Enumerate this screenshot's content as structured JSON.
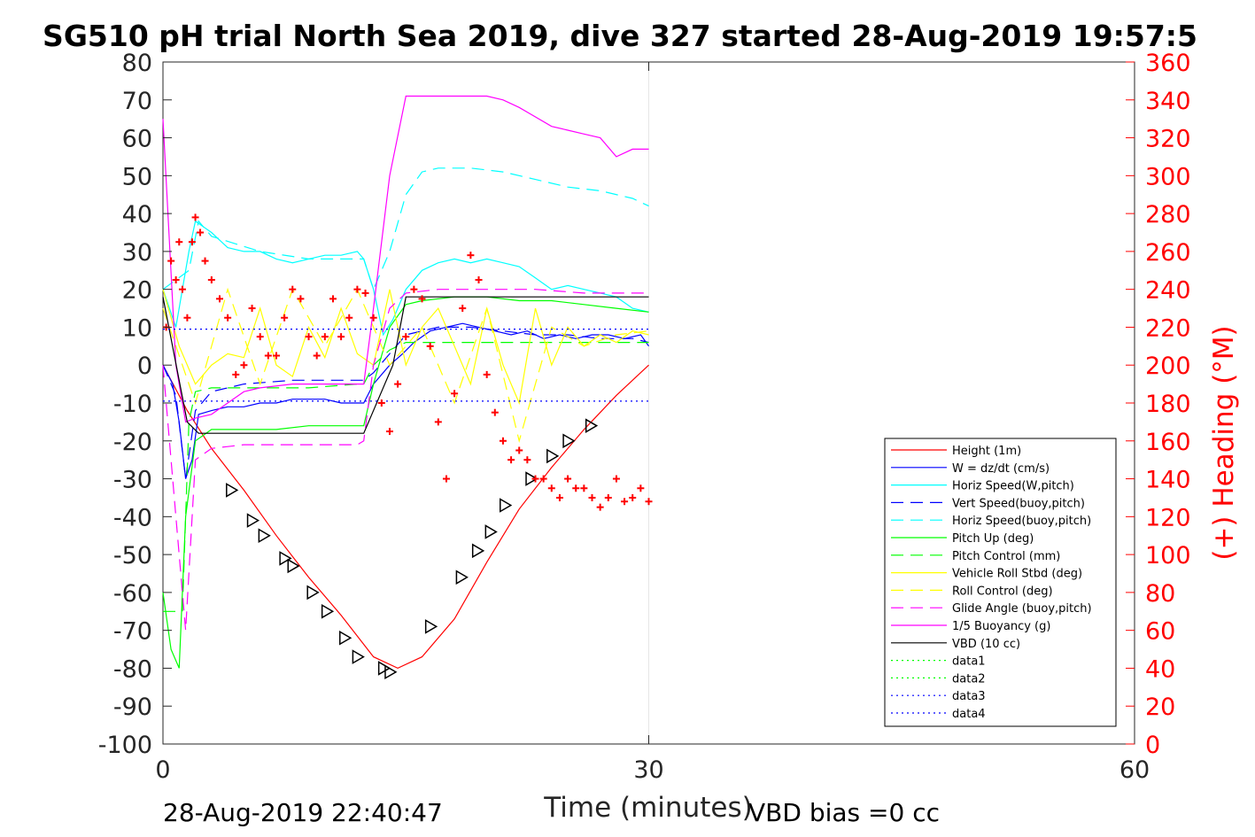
{
  "chart_data": {
    "type": "line",
    "title": "SG510 pH trial North Sea 2019, dive 327 started 28-Aug-2019 19:57:5",
    "xlabel": "Time (minutes)",
    "ylabel": "",
    "ylabel_right": "(+) Heading (°M)",
    "xlim": [
      0,
      60
    ],
    "ylim": [
      -100,
      80
    ],
    "ylim_right": [
      0,
      360
    ],
    "x_ticks": [
      "0",
      "30",
      "60"
    ],
    "y_ticks": [
      "80",
      "70",
      "60",
      "50",
      "40",
      "30",
      "20",
      "10",
      "0",
      "-10",
      "-20",
      "-30",
      "-40",
      "-50",
      "-60",
      "-70",
      "-80",
      "-90",
      "-100"
    ],
    "y_ticks_right": [
      "360",
      "340",
      "320",
      "300",
      "280",
      "260",
      "240",
      "220",
      "200",
      "180",
      "160",
      "140",
      "120",
      "100",
      "80",
      "60",
      "40",
      "20",
      "0"
    ],
    "grid": "x-only",
    "legend_position": "right",
    "footer_left": "28-Aug-2019 22:40:47",
    "footer_right": "VBD bias =0 cc",
    "colors": {
      "height": "#ff0000",
      "w": "#0000ff",
      "horiz_w": "#00ffff",
      "vert_buoy": "#0000ff",
      "horiz_buoy": "#00ffff",
      "pitch": "#00ff00",
      "pitch_ctrl": "#00ff00",
      "roll": "#ffff00",
      "roll_ctrl": "#ffff00",
      "glide": "#ff00ff",
      "buoyancy": "#ff00ff",
      "vbd": "#000000",
      "heading": "#ff0000"
    },
    "series": [
      {
        "key": "height",
        "name": "Height (1m)",
        "style": "solid",
        "x": [
          0,
          1.5,
          3,
          5,
          7,
          9,
          11,
          13,
          14.5,
          16,
          18,
          20,
          22,
          24,
          26,
          28,
          30
        ],
        "y": [
          0,
          -12,
          -22,
          -33,
          -45,
          -56,
          -66,
          -77,
          -80,
          -77,
          -67,
          -52,
          -38,
          -27,
          -17,
          -8,
          0
        ]
      },
      {
        "key": "height_markers",
        "name": "",
        "style": "triangle",
        "x": [
          4.2,
          5.5,
          6.2,
          7.5,
          8,
          9.2,
          10.1,
          11.2,
          12,
          13.6,
          14,
          16.5,
          18.4,
          19.4,
          20.2,
          21.1,
          22.7,
          24,
          25,
          26.4
        ],
        "y": [
          -33,
          -41,
          -45,
          -51,
          -53,
          -60,
          -65,
          -72,
          -77,
          -80,
          -81,
          -69,
          -56,
          -49,
          -44,
          -37,
          -30,
          -24,
          -20,
          -16
        ]
      },
      {
        "key": "w",
        "name": "W = dz/dt (cm/s)",
        "style": "solid",
        "x": [
          0,
          0.6,
          1,
          1.4,
          1.8,
          2.2,
          3,
          4,
          5,
          6,
          7,
          8,
          9,
          10,
          11,
          12,
          12.4,
          13,
          14,
          14.8,
          15.5,
          16.5,
          17.5,
          18.5,
          19.5,
          20.5,
          21.5,
          22.5,
          23.5,
          24.5,
          25.5,
          26.5,
          27.5,
          28.5,
          29.5,
          30
        ],
        "y": [
          0,
          -5,
          -15,
          -30,
          -25,
          -13,
          -12,
          -11,
          -11,
          -10,
          -10,
          -9,
          -9,
          -9,
          -10,
          -10,
          -10,
          -5,
          0,
          3,
          6,
          9,
          10,
          11,
          10,
          9,
          8,
          9,
          7,
          8,
          7,
          8,
          8,
          7,
          8,
          5
        ]
      },
      {
        "key": "horiz_w",
        "name": "Horiz Speed(W,pitch)",
        "style": "solid",
        "x": [
          0,
          0.8,
          1.6,
          2,
          3,
          4,
          5,
          6,
          7,
          8,
          9,
          10,
          11,
          12,
          12.4,
          13,
          13.6,
          14.2,
          15,
          16,
          17,
          18,
          19,
          20,
          21,
          22,
          23,
          24,
          25,
          26,
          27,
          28,
          29,
          30
        ],
        "y": [
          20,
          10,
          30,
          38,
          35,
          31,
          30,
          30,
          28,
          27,
          28,
          29,
          29,
          30,
          28,
          20,
          8,
          12,
          20,
          25,
          27,
          28,
          27,
          28,
          27,
          26,
          23,
          20,
          21,
          20,
          19,
          18,
          15,
          14
        ]
      },
      {
        "key": "vert_buoy",
        "name": "Vert Speed(buoy,pitch)",
        "style": "dashed",
        "x": [
          0,
          0.8,
          1.4,
          2,
          3,
          5,
          8,
          11,
          12.4,
          13,
          14,
          15,
          17,
          19,
          21,
          23,
          25,
          27,
          29,
          30
        ],
        "y": [
          0,
          -8,
          -30,
          -12,
          -7,
          -5,
          -4,
          -4,
          -4,
          -2,
          3,
          8,
          10,
          10,
          9,
          8,
          8,
          7,
          7,
          6
        ]
      },
      {
        "key": "horiz_buoy",
        "name": "Horiz Speed(buoy,pitch)",
        "style": "dashed",
        "x": [
          0,
          1.6,
          2.2,
          3,
          6,
          9,
          12,
          12.4,
          13,
          14,
          15,
          16,
          17,
          19,
          21,
          23,
          25,
          27,
          29,
          30
        ],
        "y": [
          20,
          25,
          38,
          34,
          30,
          28,
          28,
          28,
          20,
          30,
          45,
          51,
          52,
          52,
          51,
          49,
          47,
          46,
          44,
          42
        ]
      },
      {
        "key": "pitch",
        "name": "Pitch Up (deg)",
        "style": "solid",
        "x": [
          0,
          0.5,
          1,
          1.4,
          2,
          3,
          5,
          7,
          9,
          11,
          12,
          12.4,
          13,
          14,
          15,
          16,
          18,
          20,
          22,
          24,
          26,
          28,
          30
        ],
        "y": [
          -60,
          -75,
          -80,
          -40,
          -20,
          -17,
          -17,
          -17,
          -16,
          -16,
          -16,
          -16,
          -5,
          10,
          16,
          17,
          18,
          18,
          17,
          17,
          16,
          15,
          14
        ]
      },
      {
        "key": "pitch_ctrl",
        "name": "Pitch Control (mm)",
        "style": "dashed",
        "x": [
          0,
          1.2,
          1.6,
          2,
          3,
          6,
          9,
          12,
          12.4,
          13,
          14,
          15,
          18,
          21,
          24,
          27,
          30
        ],
        "y": [
          -65,
          -65,
          -15,
          -7,
          -6,
          -6,
          -6,
          -5,
          -5,
          0,
          4,
          6,
          6,
          6,
          6,
          6,
          6
        ]
      },
      {
        "key": "roll",
        "name": "Vehicle Roll Stbd (deg)",
        "style": "solid",
        "x": [
          0,
          1,
          2,
          3,
          4,
          5,
          6,
          7,
          8,
          9,
          10,
          11,
          12,
          13,
          14,
          15,
          16,
          17,
          18,
          19,
          20,
          21,
          22,
          23,
          24,
          25,
          26,
          27,
          28,
          29,
          30
        ],
        "y": [
          20,
          5,
          -5,
          0,
          3,
          2,
          15,
          0,
          -3,
          10,
          2,
          15,
          3,
          0,
          20,
          0,
          10,
          15,
          5,
          -5,
          15,
          0,
          -10,
          15,
          0,
          10,
          5,
          8,
          6,
          9,
          8
        ]
      },
      {
        "key": "roll_ctrl",
        "name": "Roll Control (deg)",
        "style": "dashed",
        "x": [
          0,
          2,
          4,
          6,
          8,
          10,
          12,
          14,
          16,
          18,
          20,
          22,
          24,
          26,
          28,
          30
        ],
        "y": [
          15,
          -10,
          20,
          -5,
          20,
          5,
          20,
          0,
          10,
          -10,
          15,
          -20,
          10,
          5,
          8,
          9
        ]
      },
      {
        "key": "glide",
        "name": "Glide Angle (buoy,pitch)",
        "style": "dashed",
        "x": [
          0,
          0.8,
          1.4,
          2,
          3,
          5,
          8,
          11,
          12,
          12.4,
          13,
          14,
          15,
          17,
          20,
          23,
          26,
          30
        ],
        "y": [
          0,
          -40,
          -70,
          -25,
          -22,
          -21,
          -21,
          -21,
          -21,
          -20,
          0,
          15,
          19,
          20,
          20,
          20,
          19,
          19
        ]
      },
      {
        "key": "buoyancy",
        "name": "1/5 Buoyancy (g)",
        "style": "solid",
        "x": [
          0,
          0.8,
          1.4,
          2,
          3,
          4,
          5,
          6,
          8,
          10,
          12,
          12.4,
          13,
          14,
          15,
          17,
          20,
          21,
          22,
          24,
          25,
          26,
          27,
          28,
          29,
          30
        ],
        "y": [
          65,
          0,
          -15,
          -14,
          -13,
          -10,
          -7,
          -6,
          -5,
          -5,
          -5,
          -5,
          15,
          50,
          71,
          71,
          71,
          70,
          68,
          63,
          62,
          61,
          60,
          55,
          57,
          57
        ]
      },
      {
        "key": "vbd",
        "name": "VBD (10 cc)",
        "style": "solid",
        "x": [
          0,
          1.5,
          2.2,
          4,
          8,
          12.4,
          14.2,
          15,
          20,
          25,
          30
        ],
        "y": [
          18,
          -15,
          -18,
          -18,
          -18,
          -18,
          0,
          18,
          18,
          18,
          18
        ]
      },
      {
        "key": "data1",
        "name": "data1",
        "style": "dotted",
        "x": [],
        "y": []
      },
      {
        "key": "data2",
        "name": "data2",
        "style": "dotted",
        "x": [],
        "y": []
      },
      {
        "key": "data3",
        "name": "data3",
        "style": "dotted",
        "x": [
          0,
          30
        ],
        "y": [
          9.5,
          9.5
        ]
      },
      {
        "key": "data4",
        "name": "data4",
        "style": "dotted",
        "x": [
          0,
          30
        ],
        "y": [
          -9.5,
          -9.5
        ]
      }
    ],
    "heading_series": {
      "name": "(+) Heading (°M)",
      "axis": "right",
      "x": [
        0.2,
        0.5,
        0.8,
        1,
        1.2,
        1.5,
        1.8,
        2,
        2.3,
        2.6,
        3,
        3.5,
        4,
        4.5,
        5,
        5.5,
        6,
        6.5,
        7,
        7.5,
        8,
        8.5,
        9,
        9.5,
        10,
        10.5,
        11,
        11.5,
        12,
        12.5,
        13,
        13.5,
        14,
        14.5,
        15,
        15.5,
        16,
        16.5,
        17,
        17.5,
        18,
        18.5,
        19,
        19.5,
        20,
        20.5,
        21,
        21.5,
        22,
        22.5,
        23,
        23.5,
        24,
        24.5,
        25,
        25.5,
        26,
        26.5,
        27,
        27.5,
        28,
        28.5,
        29,
        29.5,
        30
      ],
      "y": [
        220,
        255,
        245,
        265,
        240,
        225,
        265,
        278,
        270,
        255,
        245,
        235,
        225,
        195,
        200,
        230,
        215,
        205,
        205,
        225,
        240,
        235,
        215,
        205,
        215,
        235,
        215,
        225,
        240,
        238,
        225,
        180,
        165,
        190,
        215,
        240,
        235,
        210,
        170,
        140,
        185,
        230,
        258,
        245,
        195,
        175,
        160,
        150,
        155,
        150,
        140,
        140,
        135,
        130,
        140,
        135,
        135,
        130,
        125,
        130,
        140,
        128,
        130,
        135,
        128
      ]
    }
  }
}
